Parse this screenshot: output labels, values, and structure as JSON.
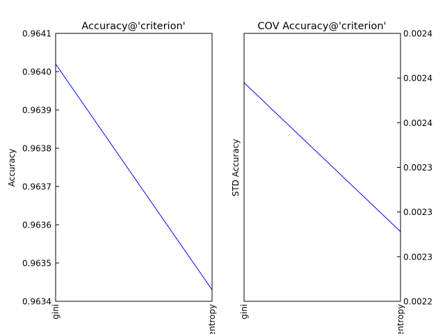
{
  "chart_data": [
    {
      "type": "line",
      "title": "Accuracy@'criterion'",
      "xlabel": "",
      "ylabel": "Accuracy",
      "categories": [
        "gini",
        "entropy"
      ],
      "values": [
        0.96402,
        0.96343
      ],
      "ylim": [
        0.9634,
        0.9641
      ],
      "yticks": [
        "0.9634",
        "0.9635",
        "0.9636",
        "0.9637",
        "0.9638",
        "0.9639",
        "0.9640",
        "0.9641"
      ],
      "ytick_side": "left",
      "grid": false,
      "line_color": "#0000ff"
    },
    {
      "type": "line",
      "title": "COV Accuracy@'criterion'",
      "xlabel": "",
      "ylabel": "STD Accuracy",
      "categories": [
        "gini",
        "entropy"
      ],
      "values": [
        0.002404,
        0.002265
      ],
      "ylim": [
        0.0022,
        0.00245
      ],
      "yticks": [
        "0.0022",
        "0.0023",
        "0.0023",
        "0.0023",
        "0.0024",
        "0.0024",
        "0.0024"
      ],
      "ytick_side": "right",
      "grid": false,
      "line_color": "#0000ff"
    }
  ]
}
